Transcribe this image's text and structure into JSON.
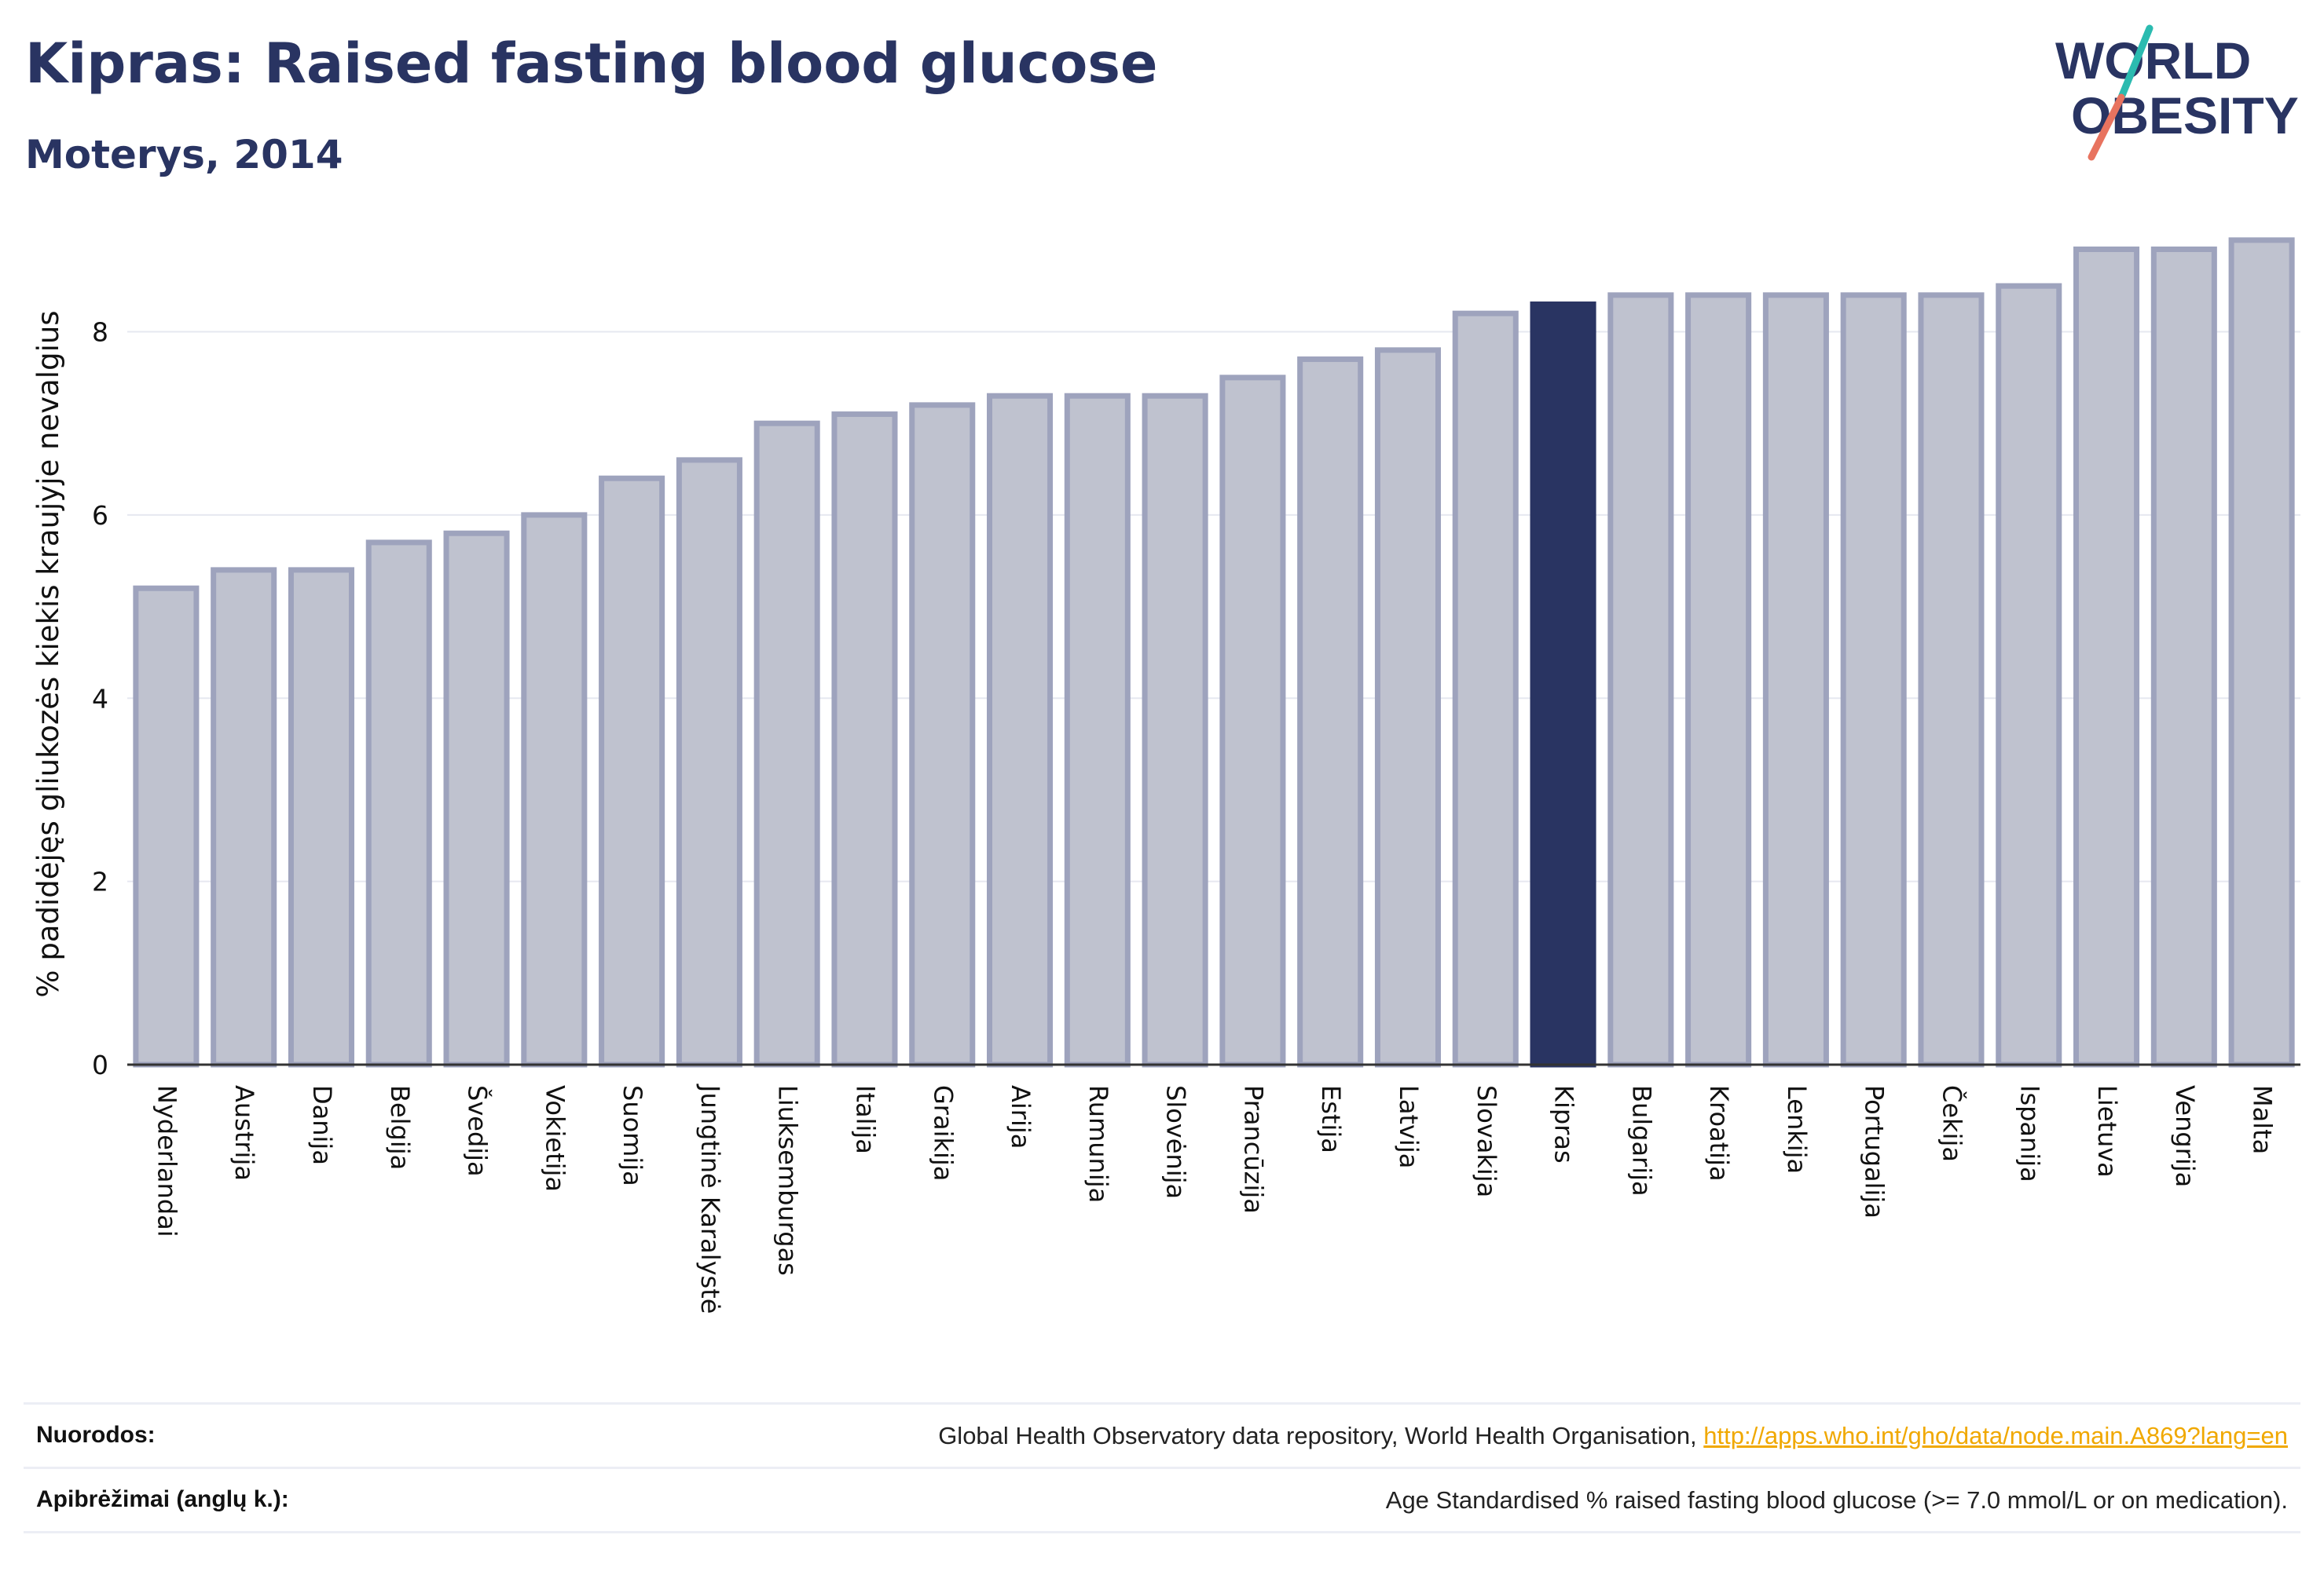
{
  "header": {
    "title": "Kipras: Raised fasting blood glucose",
    "subtitle": "Moterys, 2014",
    "logo_text_line1": "WORLD",
    "logo_text_line2": "OBESITY"
  },
  "colors": {
    "primary": "#293462",
    "bar_fill": "#bfc2cf",
    "bar_stroke": "#9ea3bd",
    "logo_teal": "#2bbbb0",
    "logo_coral": "#e8735f",
    "link": "#f0a800"
  },
  "chart_data": {
    "type": "bar",
    "ylabel": "% padidėjęs gliukozės kiekis kraujyje nevalgius",
    "ylim": [
      0,
      9.05
    ],
    "yticks": [
      0,
      2,
      4,
      6,
      8
    ],
    "grid": true,
    "highlight": "Kipras",
    "categories": [
      "Nyderlandai",
      "Austrija",
      "Danija",
      "Belgija",
      "Švedija",
      "Vokietija",
      "Suomija",
      "Jungtinė Karalystė",
      "Liuksemburgas",
      "Italija",
      "Graikija",
      "Airija",
      "Rumunija",
      "Slovėnija",
      "Prancūzija",
      "Estija",
      "Latvija",
      "Slovakija",
      "Kipras",
      "Bulgarija",
      "Kroatija",
      "Lenkija",
      "Portugalija",
      "Čekija",
      "Ispanija",
      "Lietuva",
      "Vengrija",
      "Malta"
    ],
    "values": [
      5.2,
      5.4,
      5.4,
      5.7,
      5.8,
      6.0,
      6.4,
      6.6,
      7.0,
      7.1,
      7.2,
      7.3,
      7.3,
      7.3,
      7.5,
      7.7,
      7.8,
      8.2,
      8.3,
      8.4,
      8.4,
      8.4,
      8.4,
      8.4,
      8.5,
      8.9,
      8.9,
      9.0
    ]
  },
  "footer": {
    "sources_label": "Nuorodos:",
    "sources_text": "Global Health Observatory data repository, World Health Organisation, ",
    "sources_link": "http://apps.who.int/gho/data/node.main.A869?lang=en",
    "definitions_label": "Apibrėžimai (anglų k.):",
    "definitions_text": "Age Standardised % raised fasting blood glucose (>= 7.0 mmol/L or on medication)."
  }
}
